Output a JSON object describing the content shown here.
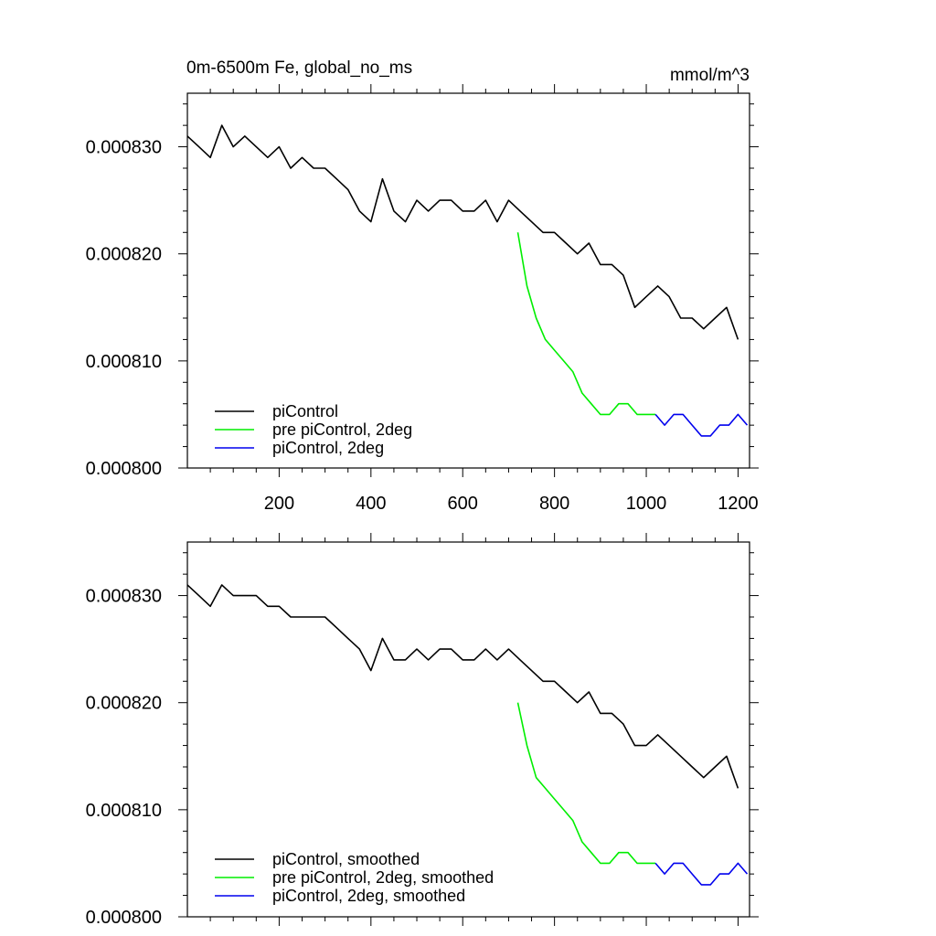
{
  "chart_data": [
    {
      "type": "line",
      "title": "0m-6500m Fe, global_no_ms",
      "units": "mmol/m^3",
      "xlim": [
        0,
        1225
      ],
      "ylim": [
        0.0008,
        0.000835
      ],
      "x_ticks": [
        200,
        400,
        600,
        800,
        1000,
        1200
      ],
      "x_tick_labels": [
        "200",
        "400",
        "600",
        "800",
        "1000",
        "1200"
      ],
      "y_ticks": [
        0.0008,
        0.00081,
        0.00082,
        0.00083
      ],
      "y_tick_labels": [
        "0.000800",
        "0.000810",
        "0.000820",
        "0.000830"
      ],
      "legend_position": "bottom-left",
      "series": [
        {
          "name": "piControl",
          "color": "#000000",
          "x": [
            0,
            25,
            50,
            75,
            100,
            125,
            150,
            175,
            200,
            225,
            250,
            275,
            300,
            325,
            350,
            375,
            400,
            425,
            450,
            475,
            500,
            525,
            550,
            575,
            600,
            625,
            650,
            675,
            700,
            725,
            750,
            775,
            800,
            825,
            850,
            875,
            900,
            925,
            950,
            975,
            1000,
            1025,
            1050,
            1075,
            1100,
            1125,
            1150,
            1175,
            1200
          ],
          "values": [
            0.000831,
            0.00083,
            0.000829,
            0.000832,
            0.00083,
            0.000831,
            0.00083,
            0.000829,
            0.00083,
            0.000828,
            0.000829,
            0.000828,
            0.000828,
            0.000827,
            0.000826,
            0.000824,
            0.000823,
            0.000827,
            0.000824,
            0.000823,
            0.000825,
            0.000824,
            0.000825,
            0.000825,
            0.000824,
            0.000824,
            0.000825,
            0.000823,
            0.000825,
            0.000824,
            0.000823,
            0.000822,
            0.000822,
            0.000821,
            0.00082,
            0.000821,
            0.000819,
            0.000819,
            0.000818,
            0.000815,
            0.000816,
            0.000817,
            0.000816,
            0.000814,
            0.000814,
            0.000813,
            0.000814,
            0.000815,
            0.000812
          ]
        },
        {
          "name": "pre piControl, 2deg",
          "color": "#00ee00",
          "x": [
            720,
            740,
            760,
            780,
            800,
            820,
            840,
            860,
            880,
            900,
            920,
            940,
            960,
            980,
            1000,
            1020
          ],
          "values": [
            0.000822,
            0.000817,
            0.000814,
            0.000812,
            0.000811,
            0.00081,
            0.000809,
            0.000807,
            0.000806,
            0.000805,
            0.000805,
            0.000806,
            0.000806,
            0.000805,
            0.000805,
            0.000805
          ]
        },
        {
          "name": "piControl, 2deg",
          "color": "#0000ee",
          "x": [
            1020,
            1040,
            1060,
            1080,
            1100,
            1120,
            1140,
            1160,
            1180,
            1200,
            1220
          ],
          "values": [
            0.000805,
            0.000804,
            0.000805,
            0.000805,
            0.000804,
            0.000803,
            0.000803,
            0.000804,
            0.000804,
            0.000805,
            0.000804
          ]
        }
      ]
    },
    {
      "type": "line",
      "xlim": [
        0,
        1225
      ],
      "ylim": [
        0.0008,
        0.000835
      ],
      "x_ticks": [
        200,
        400,
        600,
        800,
        1000,
        1200
      ],
      "y_ticks": [
        0.0008,
        0.00081,
        0.00082,
        0.00083
      ],
      "y_tick_labels": [
        "0.000800",
        "0.000810",
        "0.000820",
        "0.000830"
      ],
      "legend_position": "bottom-left",
      "series": [
        {
          "name": "piControl, smoothed",
          "color": "#000000",
          "x": [
            0,
            25,
            50,
            75,
            100,
            125,
            150,
            175,
            200,
            225,
            250,
            275,
            300,
            325,
            350,
            375,
            400,
            425,
            450,
            475,
            500,
            525,
            550,
            575,
            600,
            625,
            650,
            675,
            700,
            725,
            750,
            775,
            800,
            825,
            850,
            875,
            900,
            925,
            950,
            975,
            1000,
            1025,
            1050,
            1075,
            1100,
            1125,
            1150,
            1175,
            1200
          ],
          "values": [
            0.000831,
            0.00083,
            0.000829,
            0.000831,
            0.00083,
            0.00083,
            0.00083,
            0.000829,
            0.000829,
            0.000828,
            0.000828,
            0.000828,
            0.000828,
            0.000827,
            0.000826,
            0.000825,
            0.000823,
            0.000826,
            0.000824,
            0.000824,
            0.000825,
            0.000824,
            0.000825,
            0.000825,
            0.000824,
            0.000824,
            0.000825,
            0.000824,
            0.000825,
            0.000824,
            0.000823,
            0.000822,
            0.000822,
            0.000821,
            0.00082,
            0.000821,
            0.000819,
            0.000819,
            0.000818,
            0.000816,
            0.000816,
            0.000817,
            0.000816,
            0.000815,
            0.000814,
            0.000813,
            0.000814,
            0.000815,
            0.000812
          ]
        },
        {
          "name": "pre piControl, 2deg, smoothed",
          "color": "#00ee00",
          "x": [
            720,
            740,
            760,
            780,
            800,
            820,
            840,
            860,
            880,
            900,
            920,
            940,
            960,
            980,
            1000,
            1020
          ],
          "values": [
            0.00082,
            0.000816,
            0.000813,
            0.000812,
            0.000811,
            0.00081,
            0.000809,
            0.000807,
            0.000806,
            0.000805,
            0.000805,
            0.000806,
            0.000806,
            0.000805,
            0.000805,
            0.000805
          ]
        },
        {
          "name": "piControl, 2deg, smoothed",
          "color": "#0000ee",
          "x": [
            1020,
            1040,
            1060,
            1080,
            1100,
            1120,
            1140,
            1160,
            1180,
            1200,
            1220
          ],
          "values": [
            0.000805,
            0.000804,
            0.000805,
            0.000805,
            0.000804,
            0.000803,
            0.000803,
            0.000804,
            0.000804,
            0.000805,
            0.000804
          ]
        }
      ]
    }
  ]
}
